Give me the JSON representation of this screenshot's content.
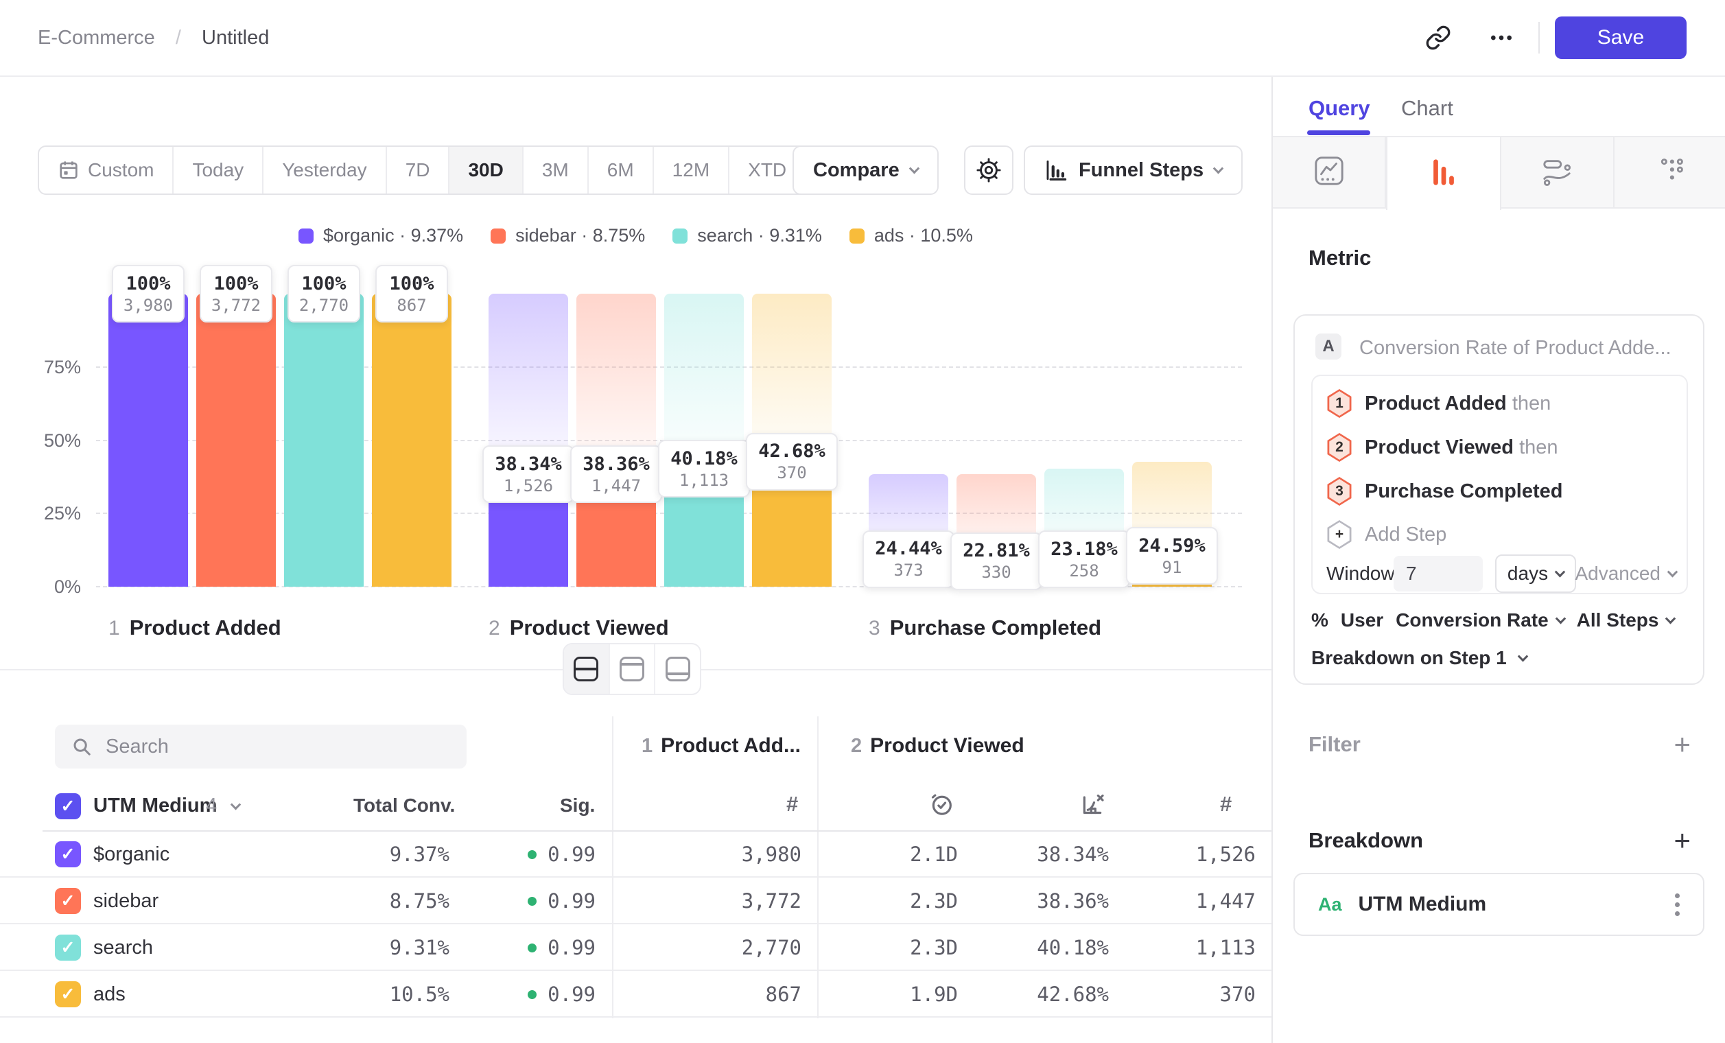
{
  "header": {
    "breadcrumb": {
      "root": "E-Commerce",
      "separator": "/",
      "leaf": "Untitled"
    },
    "save_label": "Save"
  },
  "toolbar": {
    "ranges": [
      "Custom",
      "Today",
      "Yesterday",
      "7D",
      "30D",
      "3M",
      "6M",
      "12M",
      "XTD"
    ],
    "selected_range": "30D",
    "compare_label": "Compare",
    "view_label": "Funnel Steps"
  },
  "chart_data": {
    "type": "bar",
    "kind": "grouped-funnel",
    "title": "",
    "ylim": [
      0,
      100
    ],
    "grid": true,
    "legend_position": "top",
    "yticks": [
      {
        "label": "75%",
        "value": 75
      },
      {
        "label": "50%",
        "value": 50
      },
      {
        "label": "25%",
        "value": 25
      },
      {
        "label": "0%",
        "value": 0
      }
    ],
    "series": [
      {
        "name": "$organic",
        "overall_conv": "9.37%",
        "color": "#7856FF"
      },
      {
        "name": "sidebar",
        "overall_conv": "8.75%",
        "color": "#FF7557"
      },
      {
        "name": "search",
        "overall_conv": "9.31%",
        "color": "#80E1D9"
      },
      {
        "name": "ads",
        "overall_conv": "10.5%",
        "color": "#F8BC3B"
      }
    ],
    "steps": [
      {
        "n": "1",
        "label": "Product Added",
        "bars": [
          {
            "series": "$organic",
            "pct_label": "100%",
            "count": "3,980",
            "height_pct": 100,
            "ghost_pct": null
          },
          {
            "series": "sidebar",
            "pct_label": "100%",
            "count": "3,772",
            "height_pct": 100,
            "ghost_pct": null
          },
          {
            "series": "search",
            "pct_label": "100%",
            "count": "2,770",
            "height_pct": 100,
            "ghost_pct": null
          },
          {
            "series": "ads",
            "pct_label": "100%",
            "count": "867",
            "height_pct": 100,
            "ghost_pct": null
          }
        ]
      },
      {
        "n": "2",
        "label": "Product Viewed",
        "bars": [
          {
            "series": "$organic",
            "pct_label": "38.34%",
            "count": "1,526",
            "height_pct": 38.34,
            "ghost_pct": 100
          },
          {
            "series": "sidebar",
            "pct_label": "38.36%",
            "count": "1,447",
            "height_pct": 38.36,
            "ghost_pct": 100
          },
          {
            "series": "search",
            "pct_label": "40.18%",
            "count": "1,113",
            "height_pct": 40.18,
            "ghost_pct": 100
          },
          {
            "series": "ads",
            "pct_label": "42.68%",
            "count": "370",
            "height_pct": 42.68,
            "ghost_pct": 100
          }
        ]
      },
      {
        "n": "3",
        "label": "Purchase Completed",
        "bars": [
          {
            "series": "$organic",
            "pct_label": "24.44%",
            "count": "373",
            "height_pct": 9.37,
            "ghost_pct": 38.34
          },
          {
            "series": "sidebar",
            "pct_label": "22.81%",
            "count": "330",
            "height_pct": 8.75,
            "ghost_pct": 38.36
          },
          {
            "series": "search",
            "pct_label": "23.18%",
            "count": "258",
            "height_pct": 9.31,
            "ghost_pct": 40.18
          },
          {
            "series": "ads",
            "pct_label": "24.59%",
            "count": "91",
            "height_pct": 10.5,
            "ghost_pct": 42.68
          }
        ]
      }
    ]
  },
  "view_toggle": [
    {
      "name": "split-view",
      "selected": true
    },
    {
      "name": "chart-view",
      "selected": false
    },
    {
      "name": "table-view",
      "selected": false
    }
  ],
  "table": {
    "search_placeholder": "Search",
    "group_name": "UTM Medium",
    "group_count": "4",
    "total_col": "Total Conv.",
    "sig_col": "Sig.",
    "step_columns": [
      {
        "num": "1",
        "title": "Product Add..."
      },
      {
        "num": "2",
        "title": "Product Viewed"
      }
    ],
    "rows": [
      {
        "name": "$organic",
        "color": "#7856FF",
        "total": "9.37%",
        "sig": "0.99",
        "s1_count": "3,980",
        "s2_time": "2.1D",
        "s2_pct": "38.34%",
        "s2_count": "1,526"
      },
      {
        "name": "sidebar",
        "color": "#FF7557",
        "total": "8.75%",
        "sig": "0.99",
        "s1_count": "3,772",
        "s2_time": "2.3D",
        "s2_pct": "38.36%",
        "s2_count": "1,447"
      },
      {
        "name": "search",
        "color": "#80E1D9",
        "total": "9.31%",
        "sig": "0.99",
        "s1_count": "2,770",
        "s2_time": "2.3D",
        "s2_pct": "40.18%",
        "s2_count": "1,113"
      },
      {
        "name": "ads",
        "color": "#F8BC3B",
        "total": "10.5%",
        "sig": "0.99",
        "s1_count": "867",
        "s2_time": "1.9D",
        "s2_pct": "42.68%",
        "s2_count": "370"
      }
    ]
  },
  "panel": {
    "tabs": {
      "query": "Query",
      "chart": "Chart"
    },
    "active_tab": "Query",
    "chart_types": [
      "insights-icon",
      "funnel-icon",
      "retention-icon",
      "grid-dots-icon"
    ],
    "active_type": "funnel-icon",
    "metric_label": "Metric",
    "metric": {
      "badge": "A",
      "title": "Conversion Rate of Product Adde...",
      "steps": [
        {
          "n": "1",
          "label": "Product Added",
          "suffix": "then"
        },
        {
          "n": "2",
          "label": "Product Viewed",
          "suffix": "then"
        },
        {
          "n": "3",
          "label": "Purchase Completed",
          "suffix": ""
        }
      ],
      "add_step_label": "Add Step",
      "window_label": "Window",
      "window_value": "7",
      "window_unit": "days",
      "advanced_label": "Advanced",
      "measure": {
        "prefix": "%",
        "entity": "User",
        "metric": "Conversion Rate",
        "scope": "All Steps"
      },
      "breakdown_on_label": "Breakdown on Step 1"
    },
    "filter_label": "Filter",
    "breakdown_label": "Breakdown",
    "breakdown_item": {
      "type_badge": "Aa",
      "label": "UTM Medium",
      "badge_color": "#2FB273"
    }
  },
  "colors": {
    "accent": "#4F44E0",
    "funnel_tab": "#F15B36",
    "sig_dot": "#2EB272"
  }
}
